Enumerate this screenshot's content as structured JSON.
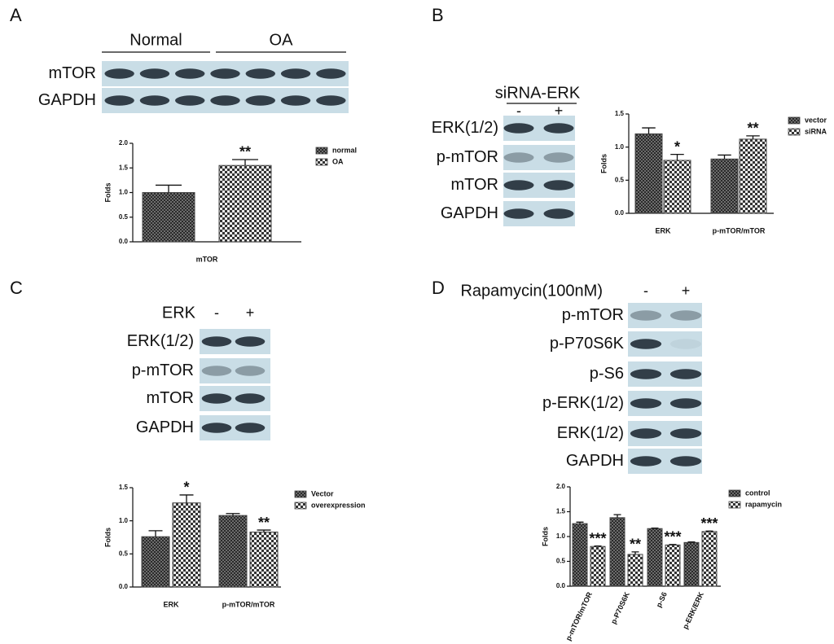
{
  "panels": [
    {
      "letter": "A",
      "groups": [
        "Normal",
        "OA"
      ],
      "rows": [
        "mTOR",
        "GAPDH"
      ]
    },
    {
      "letter": "B",
      "treatment": "siRNA-ERK",
      "lanes": [
        "-",
        "+"
      ],
      "rows": [
        "ERK(1/2)",
        "p-mTOR",
        "mTOR",
        "GAPDH"
      ]
    },
    {
      "letter": "C",
      "treatment": "ERK",
      "lanes": [
        "-",
        "+"
      ],
      "rows": [
        "ERK(1/2)",
        "p-mTOR",
        "mTOR",
        "GAPDH"
      ]
    },
    {
      "letter": "D",
      "treatment": "Rapamycin(100nM)",
      "lanes": [
        "-",
        "+"
      ],
      "rows": [
        "p-mTOR",
        "p-P70S6K",
        "p-S6",
        "p-ERK(1/2)",
        "ERK(1/2)",
        "GAPDH"
      ]
    }
  ],
  "chart_data": [
    {
      "type": "bar",
      "ylabel": "Folds",
      "categories": [
        "mTOR"
      ],
      "series": [
        {
          "name": "normal",
          "color": "#444444",
          "values": [
            1.0
          ],
          "errors": [
            0.15
          ],
          "significance": [
            null
          ]
        },
        {
          "name": "OA",
          "color": "#444444",
          "values": [
            1.55
          ],
          "errors": [
            0.12
          ],
          "significance": [
            "**"
          ]
        }
      ],
      "ylim": [
        0,
        2
      ],
      "yticks": [
        {
          "value": 0,
          "label": "0.0"
        },
        {
          "value": 0.5,
          "label": "0.5"
        },
        {
          "value": 1,
          "label": "1.0"
        },
        {
          "value": 1.5,
          "label": "1.5"
        },
        {
          "value": 2,
          "label": "2.0"
        }
      ]
    },
    {
      "type": "bar",
      "ylabel": "Folds",
      "categories": [
        "ERK",
        "p-mTOR/mTOR"
      ],
      "series": [
        {
          "name": "vector",
          "color": "#444444",
          "values": [
            1.2,
            0.82
          ],
          "errors": [
            0.09,
            0.06
          ],
          "significance": [
            null,
            null
          ]
        },
        {
          "name": "siRNA",
          "color": "#444444",
          "values": [
            0.8,
            1.12
          ],
          "errors": [
            0.09,
            0.05
          ],
          "significance": [
            "*",
            "**"
          ]
        }
      ],
      "ylim": [
        0,
        1.5
      ],
      "yticks": [
        {
          "value": 0,
          "label": "0.0"
        },
        {
          "value": 0.5,
          "label": "0.5"
        },
        {
          "value": 1,
          "label": "1.0"
        },
        {
          "value": 1.5,
          "label": "1.5"
        }
      ]
    },
    {
      "type": "bar",
      "ylabel": "Folds",
      "categories": [
        "ERK",
        "p-mTOR/mTOR"
      ],
      "series": [
        {
          "name": "Vector",
          "color": "#444444",
          "values": [
            0.76,
            1.08
          ],
          "errors": [
            0.09,
            0.03
          ],
          "significance": [
            null,
            null
          ]
        },
        {
          "name": "overexpression",
          "color": "#444444",
          "values": [
            1.27,
            0.83
          ],
          "errors": [
            0.12,
            0.03
          ],
          "significance": [
            "*",
            "**"
          ]
        }
      ],
      "ylim": [
        0,
        1.5
      ],
      "yticks": [
        {
          "value": 0,
          "label": "0.0"
        },
        {
          "value": 0.5,
          "label": "0.5"
        },
        {
          "value": 1,
          "label": "1.0"
        },
        {
          "value": 1.5,
          "label": "1.5"
        }
      ]
    },
    {
      "type": "bar",
      "ylabel": "Folds",
      "categories": [
        "p-mTOR/mTOR",
        "p-P70S6K",
        "p-S6",
        "p-ERK/ERK"
      ],
      "series": [
        {
          "name": "control",
          "color": "#444444",
          "values": [
            1.26,
            1.38,
            1.16,
            0.88
          ],
          "errors": [
            0.03,
            0.06,
            0.01,
            0.01
          ],
          "significance": [
            null,
            null,
            null,
            null
          ]
        },
        {
          "name": "rapamycin",
          "color": "#444444",
          "values": [
            0.8,
            0.64,
            0.83,
            1.1
          ],
          "errors": [
            0.01,
            0.05,
            0.01,
            0.01
          ],
          "significance": [
            "***",
            "**",
            "***",
            "***"
          ]
        }
      ],
      "ylim": [
        0,
        2
      ],
      "yticks": [
        {
          "value": 0,
          "label": "0.0"
        },
        {
          "value": 0.5,
          "label": "0.5"
        },
        {
          "value": 1,
          "label": "1.0"
        },
        {
          "value": 1.5,
          "label": "1.5"
        },
        {
          "value": 2,
          "label": "2.0"
        }
      ]
    }
  ]
}
